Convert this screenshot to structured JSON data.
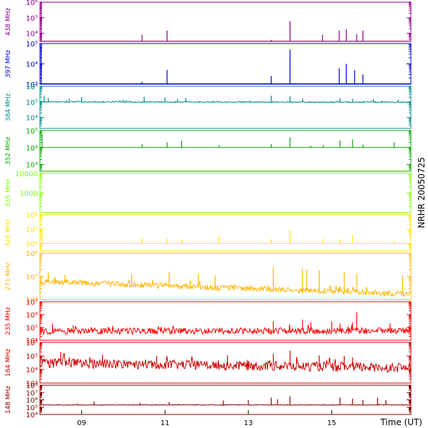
{
  "chart_data": {
    "type": "line",
    "side_label": "NRHR 20050725",
    "x_axis": {
      "label": "Time (UT)",
      "range_hours": [
        8.0,
        16.9
      ],
      "ticks": [
        {
          "hour": 9,
          "label": "09"
        },
        {
          "hour": 11,
          "label": "11"
        },
        {
          "hour": 13,
          "label": "13"
        },
        {
          "hour": 15,
          "label": "15"
        }
      ]
    },
    "panels": [
      {
        "name": "438 MHz",
        "color": "#8B008B",
        "scale": "log",
        "ylim": [
          3000,
          1000000
        ],
        "tick_labels": [
          {
            "value": 10000,
            "label": "10⁴"
          },
          {
            "value": 100000,
            "label": "10⁵"
          },
          {
            "value": 1000000,
            "label": "10⁶"
          }
        ],
        "baseline": 3100,
        "noise": 0.0,
        "trend": 0.0,
        "spikes": [
          [
            8.03,
            600000
          ],
          [
            10.45,
            8000
          ],
          [
            11.05,
            15000
          ],
          [
            13.55,
            3800
          ],
          [
            14.0,
            60000
          ],
          [
            14.78,
            8000
          ],
          [
            15.18,
            15000
          ],
          [
            15.35,
            18000
          ],
          [
            15.6,
            9000
          ],
          [
            15.75,
            15000
          ]
        ]
      },
      {
        "name": "397 MHz",
        "color": "#0000CD",
        "scale": "log",
        "ylim": [
          1000,
          100000
        ],
        "tick_labels": [
          {
            "value": 1000,
            "label": "10³"
          },
          {
            "value": 10000,
            "label": "10⁴"
          },
          {
            "value": 100000,
            "label": "10⁵"
          }
        ],
        "baseline": 1050,
        "noise": 0.0,
        "trend": 0.0,
        "spikes": [
          [
            8.03,
            70000
          ],
          [
            10.45,
            1300
          ],
          [
            11.05,
            5000
          ],
          [
            13.55,
            2500
          ],
          [
            14.0,
            50000
          ],
          [
            15.18,
            6000
          ],
          [
            15.35,
            10000
          ],
          [
            15.55,
            5000
          ],
          [
            15.75,
            3000
          ]
        ]
      },
      {
        "name": "384 MHz",
        "color": "#008B8B",
        "scale": "log",
        "ylim": [
          2000,
          1000000
        ],
        "tick_labels": [
          {
            "value": 10000,
            "label": "10⁴"
          },
          {
            "value": 100000,
            "label": "10⁵"
          },
          {
            "value": 1000000,
            "label": "10⁶"
          }
        ],
        "baseline": 100000,
        "noise": 0.04,
        "trend": -0.02,
        "spikes": [
          [
            8.1,
            250000
          ],
          [
            8.2,
            180000
          ],
          [
            8.7,
            160000
          ],
          [
            9.0,
            210000
          ],
          [
            10.0,
            140000
          ],
          [
            10.5,
            220000
          ],
          [
            11.0,
            200000
          ],
          [
            11.3,
            160000
          ],
          [
            11.5,
            180000
          ],
          [
            13.55,
            250000
          ],
          [
            14.0,
            230000
          ],
          [
            14.3,
            170000
          ],
          [
            15.2,
            170000
          ],
          [
            15.5,
            160000
          ],
          [
            16.0,
            150000
          ],
          [
            16.6,
            140000
          ]
        ]
      },
      {
        "name": "352 MHz",
        "color": "#00AA00",
        "scale": "log",
        "ylim": [
          400,
          100000
        ],
        "tick_labels": [
          {
            "value": 1000,
            "label": "10³"
          },
          {
            "value": 10000,
            "label": "10⁴"
          },
          {
            "value": 100000,
            "label": "10⁵"
          }
        ],
        "baseline": 10000,
        "noise": 0.0,
        "trend": 0.0,
        "spikes": [
          [
            8.05,
            60000
          ],
          [
            10.45,
            16000
          ],
          [
            11.05,
            20000
          ],
          [
            11.4,
            25000
          ],
          [
            12.3,
            14000
          ],
          [
            13.55,
            16000
          ],
          [
            14.0,
            40000
          ],
          [
            14.5,
            13000
          ],
          [
            14.8,
            14000
          ],
          [
            15.2,
            25000
          ],
          [
            15.5,
            30000
          ],
          [
            15.75,
            15000
          ],
          [
            16.5,
            20000
          ]
        ]
      },
      {
        "name": "335 MHz",
        "color": "#7FFF00",
        "scale": "log",
        "ylim": [
          100,
          10000
        ],
        "tick_labels": [
          {
            "value": 1000,
            "label": "1000"
          },
          {
            "value": 10000,
            "label": "10000"
          }
        ],
        "baseline": 9980,
        "noise": 0.0,
        "trend": 0.0,
        "spikes": []
      },
      {
        "name": "328 MHz",
        "color": "#FFE600",
        "scale": "log",
        "ylim": [
          3000,
          1000000
        ],
        "tick_labels": [
          {
            "value": 10000,
            "label": "10⁴"
          },
          {
            "value": 100000,
            "label": "10⁵"
          },
          {
            "value": 1000000,
            "label": "10⁶"
          }
        ],
        "baseline": 10000,
        "noise": 0.0,
        "trend": 0.0,
        "spikes": [
          [
            8.05,
            80000
          ],
          [
            10.45,
            25000
          ],
          [
            11.05,
            22000
          ],
          [
            11.4,
            18000
          ],
          [
            12.3,
            35000
          ],
          [
            13.55,
            20000
          ],
          [
            14.0,
            80000
          ],
          [
            14.8,
            22000
          ],
          [
            15.2,
            20000
          ],
          [
            15.5,
            40000
          ],
          [
            16.5,
            15000
          ]
        ]
      },
      {
        "name": "271 MHz",
        "color": "#FFB400",
        "scale": "log",
        "ylim": [
          10000,
          1000000
        ],
        "tick_labels": [
          {
            "value": 10000,
            "label": "10⁴"
          },
          {
            "value": 100000,
            "label": "10⁵"
          },
          {
            "value": 1000000,
            "label": "10⁶"
          }
        ],
        "baseline": 60000,
        "noise": 0.12,
        "trend": -0.55,
        "spikes": [
          [
            8.2,
            150000
          ],
          [
            8.6,
            120000
          ],
          [
            10.2,
            120000
          ],
          [
            11.1,
            160000
          ],
          [
            11.8,
            130000
          ],
          [
            12.2,
            110000
          ],
          [
            13.6,
            250000
          ],
          [
            14.3,
            220000
          ],
          [
            14.4,
            200000
          ],
          [
            14.7,
            180000
          ],
          [
            15.3,
            150000
          ],
          [
            15.6,
            130000
          ],
          [
            16.7,
            110000
          ]
        ]
      },
      {
        "name": "235 MHz",
        "color": "#FF0000",
        "scale": "log",
        "ylim": [
          10000,
          10000000
        ],
        "tick_labels": [
          {
            "value": 10000,
            "label": "10⁴"
          },
          {
            "value": 100000,
            "label": "10⁵"
          },
          {
            "value": 1000000,
            "label": "10⁶"
          },
          {
            "value": 10000000,
            "label": "10⁷"
          }
        ],
        "baseline": 50000,
        "noise": 0.25,
        "trend": 0.05,
        "spikes": [
          [
            8.3,
            200000
          ],
          [
            8.8,
            150000
          ],
          [
            13.6,
            300000
          ],
          [
            14.3,
            400000
          ],
          [
            14.5,
            250000
          ],
          [
            15.0,
            300000
          ],
          [
            15.2,
            200000
          ],
          [
            15.5,
            250000
          ],
          [
            15.6,
            1500000
          ],
          [
            16.4,
            200000
          ]
        ]
      },
      {
        "name": "164 MHz",
        "color": "#CC0000",
        "scale": "log",
        "ylim": [
          1000,
          1000000
        ],
        "tick_labels": [
          {
            "value": 1000,
            "label": "10³"
          },
          {
            "value": 10000,
            "label": "10⁴"
          },
          {
            "value": 100000,
            "label": "10⁵"
          },
          {
            "value": 1000000,
            "label": "10⁶"
          }
        ],
        "baseline": 30000,
        "noise": 0.35,
        "trend": -0.35,
        "spikes": [
          [
            8.5,
            200000
          ],
          [
            9.5,
            120000
          ],
          [
            10.8,
            100000
          ],
          [
            12.5,
            110000
          ],
          [
            13.6,
            150000
          ],
          [
            14.0,
            250000
          ],
          [
            14.7,
            110000
          ],
          [
            15.3,
            100000
          ],
          [
            15.5,
            80000
          ]
        ]
      },
      {
        "name": "148 MHz",
        "color": "#8B0000",
        "scale": "log",
        "ylim": [
          10000,
          100000000
        ],
        "tick_labels": [
          {
            "value": 10000,
            "label": "10⁴"
          },
          {
            "value": 100000,
            "label": "10⁵"
          },
          {
            "value": 1000000,
            "label": "10⁶"
          },
          {
            "value": 10000000,
            "label": "10⁷"
          },
          {
            "value": 100000000,
            "label": "10⁸"
          }
        ],
        "baseline": 200000,
        "noise": 0.05,
        "trend": 0.0,
        "spikes": [
          [
            9.3,
            600000
          ],
          [
            10.4,
            400000
          ],
          [
            11.1,
            500000
          ],
          [
            12.4,
            800000
          ],
          [
            13.0,
            900000
          ],
          [
            13.55,
            2000000
          ],
          [
            13.7,
            1200000
          ],
          [
            14.0,
            3000000
          ],
          [
            15.2,
            2000000
          ],
          [
            15.5,
            1500000
          ],
          [
            15.75,
            1000000
          ],
          [
            16.1,
            2000000
          ],
          [
            16.3,
            900000
          ]
        ]
      }
    ]
  }
}
